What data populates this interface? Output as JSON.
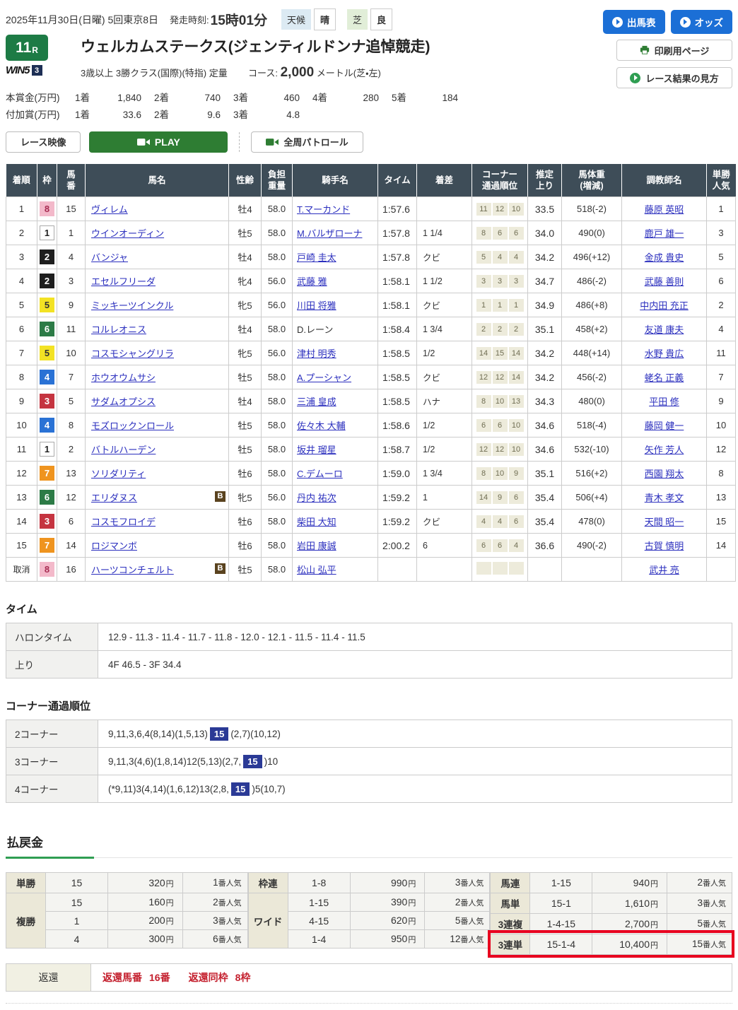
{
  "top": {
    "date": "2025年11月30日(日曜) 5回東京8日",
    "start_label": "発走時刻:",
    "start_time": "15時01分",
    "weather_label": "天候",
    "weather": "晴",
    "turf_label": "芝",
    "turf": "良",
    "btn_entries": "出馬表",
    "btn_odds": "オッズ",
    "btn_print": "印刷用ページ",
    "btn_howto": "レース結果の見方"
  },
  "race": {
    "number": "11",
    "r": "R",
    "win5": "WIN5",
    "win5_slot": "3",
    "title": "ウェルカムステークス(ジェンティルドンナ追悼競走)",
    "conditions": "3歳以上 3勝クラス(国際)(特指) 定量",
    "course_label": "コース:",
    "distance": "2,000",
    "course_tail": "メートル(芝・左)"
  },
  "prize": {
    "main_label": "本賞金(万円)",
    "main": [
      {
        "pos": "1着",
        "val": "1,840"
      },
      {
        "pos": "2着",
        "val": "740"
      },
      {
        "pos": "3着",
        "val": "460"
      },
      {
        "pos": "4着",
        "val": "280"
      },
      {
        "pos": "5着",
        "val": "184"
      }
    ],
    "extra_label": "付加賞(万円)",
    "extra": [
      {
        "pos": "1着",
        "val": "33.6"
      },
      {
        "pos": "2着",
        "val": "9.6"
      },
      {
        "pos": "3着",
        "val": "4.8"
      }
    ]
  },
  "video": {
    "race_video": "レース映像",
    "play": "PLAY",
    "patrol": "全周パトロール"
  },
  "results": {
    "headers": [
      "着順",
      "枠",
      "馬\n番",
      "馬名",
      "性齢",
      "負担\n重量",
      "騎手名",
      "タイム",
      "着差",
      "コーナー\n通過順位",
      "推定\n上り",
      "馬体重\n(増減)",
      "調教師名",
      "単勝\n人気"
    ],
    "rows": [
      {
        "pos": "1",
        "frame": 8,
        "num": "15",
        "name": "ヴィレム",
        "b": false,
        "sexage": "牡4",
        "wt": "58.0",
        "jockey": "T.マーカンド",
        "jlink": true,
        "time": "1:57.6",
        "margin": "",
        "corners": [
          "11",
          "12",
          "10"
        ],
        "up": "33.5",
        "body": "518(-2)",
        "trainer": "藤原 英昭",
        "pop": "1"
      },
      {
        "pos": "2",
        "frame": 1,
        "num": "1",
        "name": "ウインオーディン",
        "b": false,
        "sexage": "牡5",
        "wt": "58.0",
        "jockey": "M.バルザローナ",
        "jlink": true,
        "time": "1:57.8",
        "margin": "1 1/4",
        "corners": [
          "8",
          "6",
          "6"
        ],
        "up": "34.0",
        "body": "490(0)",
        "trainer": "鹿戸 雄一",
        "pop": "3"
      },
      {
        "pos": "3",
        "frame": 2,
        "num": "4",
        "name": "バンジャ",
        "b": false,
        "sexage": "牡4",
        "wt": "58.0",
        "jockey": "戸崎 圭太",
        "jlink": true,
        "time": "1:57.8",
        "margin": "クビ",
        "corners": [
          "5",
          "4",
          "4"
        ],
        "up": "34.2",
        "body": "496(+12)",
        "trainer": "金成 貴史",
        "pop": "5"
      },
      {
        "pos": "4",
        "frame": 2,
        "num": "3",
        "name": "エセルフリーダ",
        "b": false,
        "sexage": "牝4",
        "wt": "56.0",
        "jockey": "武藤 雅",
        "jlink": true,
        "time": "1:58.1",
        "margin": "1 1/2",
        "corners": [
          "3",
          "3",
          "3"
        ],
        "up": "34.7",
        "body": "486(-2)",
        "trainer": "武藤 善則",
        "pop": "6"
      },
      {
        "pos": "5",
        "frame": 5,
        "num": "9",
        "name": "ミッキーツインクル",
        "b": false,
        "sexage": "牝5",
        "wt": "56.0",
        "jockey": "川田 将雅",
        "jlink": true,
        "time": "1:58.1",
        "margin": "クビ",
        "corners": [
          "1",
          "1",
          "1"
        ],
        "up": "34.9",
        "body": "486(+8)",
        "trainer": "中内田 充正",
        "pop": "2"
      },
      {
        "pos": "6",
        "frame": 6,
        "num": "11",
        "name": "コルレオニス",
        "b": false,
        "sexage": "牡4",
        "wt": "58.0",
        "jockey": "D.レーン",
        "jlink": false,
        "time": "1:58.4",
        "margin": "1 3/4",
        "corners": [
          "2",
          "2",
          "2"
        ],
        "up": "35.1",
        "body": "458(+2)",
        "trainer": "友道 康夫",
        "pop": "4"
      },
      {
        "pos": "7",
        "frame": 5,
        "num": "10",
        "name": "コスモシャングリラ",
        "b": false,
        "sexage": "牝5",
        "wt": "56.0",
        "jockey": "津村 明秀",
        "jlink": true,
        "time": "1:58.5",
        "margin": "1/2",
        "corners": [
          "14",
          "15",
          "14"
        ],
        "up": "34.2",
        "body": "448(+14)",
        "trainer": "水野 貴広",
        "pop": "11"
      },
      {
        "pos": "8",
        "frame": 4,
        "num": "7",
        "name": "ホウオウムサシ",
        "b": false,
        "sexage": "牡5",
        "wt": "58.0",
        "jockey": "A.プーシャン",
        "jlink": true,
        "time": "1:58.5",
        "margin": "クビ",
        "corners": [
          "12",
          "12",
          "14"
        ],
        "up": "34.2",
        "body": "456(-2)",
        "trainer": "蛯名 正義",
        "pop": "7"
      },
      {
        "pos": "9",
        "frame": 3,
        "num": "5",
        "name": "サダムオプシス",
        "b": false,
        "sexage": "牡4",
        "wt": "58.0",
        "jockey": "三浦 皇成",
        "jlink": true,
        "time": "1:58.5",
        "margin": "ハナ",
        "corners": [
          "8",
          "10",
          "13"
        ],
        "up": "34.3",
        "body": "480(0)",
        "trainer": "平田 修",
        "pop": "9"
      },
      {
        "pos": "10",
        "frame": 4,
        "num": "8",
        "name": "モズロックンロール",
        "b": false,
        "sexage": "牡5",
        "wt": "58.0",
        "jockey": "佐々木 大輔",
        "jlink": true,
        "time": "1:58.6",
        "margin": "1/2",
        "corners": [
          "6",
          "6",
          "10"
        ],
        "up": "34.6",
        "body": "518(-4)",
        "trainer": "藤岡 健一",
        "pop": "10"
      },
      {
        "pos": "11",
        "frame": 1,
        "num": "2",
        "name": "バトルハーデン",
        "b": false,
        "sexage": "牡5",
        "wt": "58.0",
        "jockey": "坂井 瑠星",
        "jlink": true,
        "time": "1:58.7",
        "margin": "1/2",
        "corners": [
          "12",
          "12",
          "10"
        ],
        "up": "34.6",
        "body": "532(-10)",
        "trainer": "矢作 芳人",
        "pop": "12"
      },
      {
        "pos": "12",
        "frame": 7,
        "num": "13",
        "name": "ソリダリティ",
        "b": false,
        "sexage": "牡6",
        "wt": "58.0",
        "jockey": "C.デムーロ",
        "jlink": true,
        "time": "1:59.0",
        "margin": "1 3/4",
        "corners": [
          "8",
          "10",
          "9"
        ],
        "up": "35.1",
        "body": "516(+2)",
        "trainer": "西園 翔太",
        "pop": "8"
      },
      {
        "pos": "13",
        "frame": 6,
        "num": "12",
        "name": "エリダヌス",
        "b": true,
        "sexage": "牝5",
        "wt": "56.0",
        "jockey": "丹内 祐次",
        "jlink": true,
        "time": "1:59.2",
        "margin": "1",
        "corners": [
          "14",
          "9",
          "6"
        ],
        "up": "35.4",
        "body": "506(+4)",
        "trainer": "青木 孝文",
        "pop": "13"
      },
      {
        "pos": "14",
        "frame": 3,
        "num": "6",
        "name": "コスモフロイデ",
        "b": false,
        "sexage": "牡6",
        "wt": "58.0",
        "jockey": "柴田 大知",
        "jlink": true,
        "time": "1:59.2",
        "margin": "クビ",
        "corners": [
          "4",
          "4",
          "6"
        ],
        "up": "35.4",
        "body": "478(0)",
        "trainer": "天間 昭一",
        "pop": "15"
      },
      {
        "pos": "15",
        "frame": 7,
        "num": "14",
        "name": "ロジマンボ",
        "b": false,
        "sexage": "牡6",
        "wt": "58.0",
        "jockey": "岩田 康誠",
        "jlink": true,
        "time": "2:00.2",
        "margin": "6",
        "corners": [
          "6",
          "6",
          "4"
        ],
        "up": "36.6",
        "body": "490(-2)",
        "trainer": "古賀 慎明",
        "pop": "14"
      },
      {
        "pos": "取消",
        "frame": 8,
        "num": "16",
        "name": "ハーツコンチェルト",
        "b": true,
        "sexage": "牡5",
        "wt": "58.0",
        "jockey": "松山 弘平",
        "jlink": true,
        "time": "",
        "margin": "",
        "corners": [
          "",
          "",
          ""
        ],
        "up": "",
        "body": "",
        "trainer": "武井 亮",
        "pop": ""
      }
    ]
  },
  "timing": {
    "heading": "タイム",
    "rows": [
      {
        "label": "ハロンタイム",
        "value": "12.9 - 11.3 - 11.4 - 11.7 - 11.8 - 12.0 - 12.1 - 11.5 - 11.4 - 11.5"
      },
      {
        "label": "上り",
        "value": "4F 46.5 - 3F 34.4"
      }
    ]
  },
  "corners": {
    "heading": "コーナー通過順位",
    "rows": [
      {
        "label": "2コーナー",
        "pre": "9,11,3,6,4(8,14)(1,5,13)",
        "hl": "15",
        "post": "(2,7)(10,12)"
      },
      {
        "label": "3コーナー",
        "pre": "9,11,3(4,6)(1,8,14)12(5,13)(2,7,",
        "hl": "15",
        "post": ")10"
      },
      {
        "label": "4コーナー",
        "pre": "(*9,11)3(4,14)(1,6,12)13(2,8,",
        "hl": "15",
        "post": ")5(10,7)"
      }
    ]
  },
  "payout": {
    "heading": "払戻金",
    "unit": "円",
    "pop_suffix": "番人気",
    "groups": [
      [
        {
          "label": "単勝",
          "rows": [
            [
              "15",
              "320",
              "1"
            ]
          ]
        },
        {
          "label": "複勝",
          "rows": [
            [
              "15",
              "160",
              "2"
            ],
            [
              "1",
              "200",
              "3"
            ],
            [
              "4",
              "300",
              "6"
            ]
          ]
        }
      ],
      [
        {
          "label": "枠連",
          "rows": [
            [
              "1-8",
              "990",
              "3"
            ]
          ]
        },
        {
          "label": "ワイド",
          "rows": [
            [
              "1-15",
              "390",
              "2"
            ],
            [
              "4-15",
              "620",
              "5"
            ],
            [
              "1-4",
              "950",
              "12"
            ]
          ]
        }
      ],
      [
        {
          "label": "馬連",
          "rows": [
            [
              "1-15",
              "940",
              "2"
            ]
          ]
        },
        {
          "label": "馬単",
          "rows": [
            [
              "15-1",
              "1,610",
              "3"
            ]
          ]
        },
        {
          "label": "3連複",
          "rows": [
            [
              "1-4-15",
              "2,700",
              "5"
            ]
          ]
        },
        {
          "label": "3連単",
          "rows": [
            [
              "15-1-4",
              "10,400",
              "15"
            ]
          ],
          "highlight": true
        }
      ]
    ]
  },
  "refund": {
    "label": "返還",
    "items": [
      {
        "k": "返還馬番",
        "v": "16番"
      },
      {
        "k": "返還同枠",
        "v": "8枠"
      }
    ]
  }
}
